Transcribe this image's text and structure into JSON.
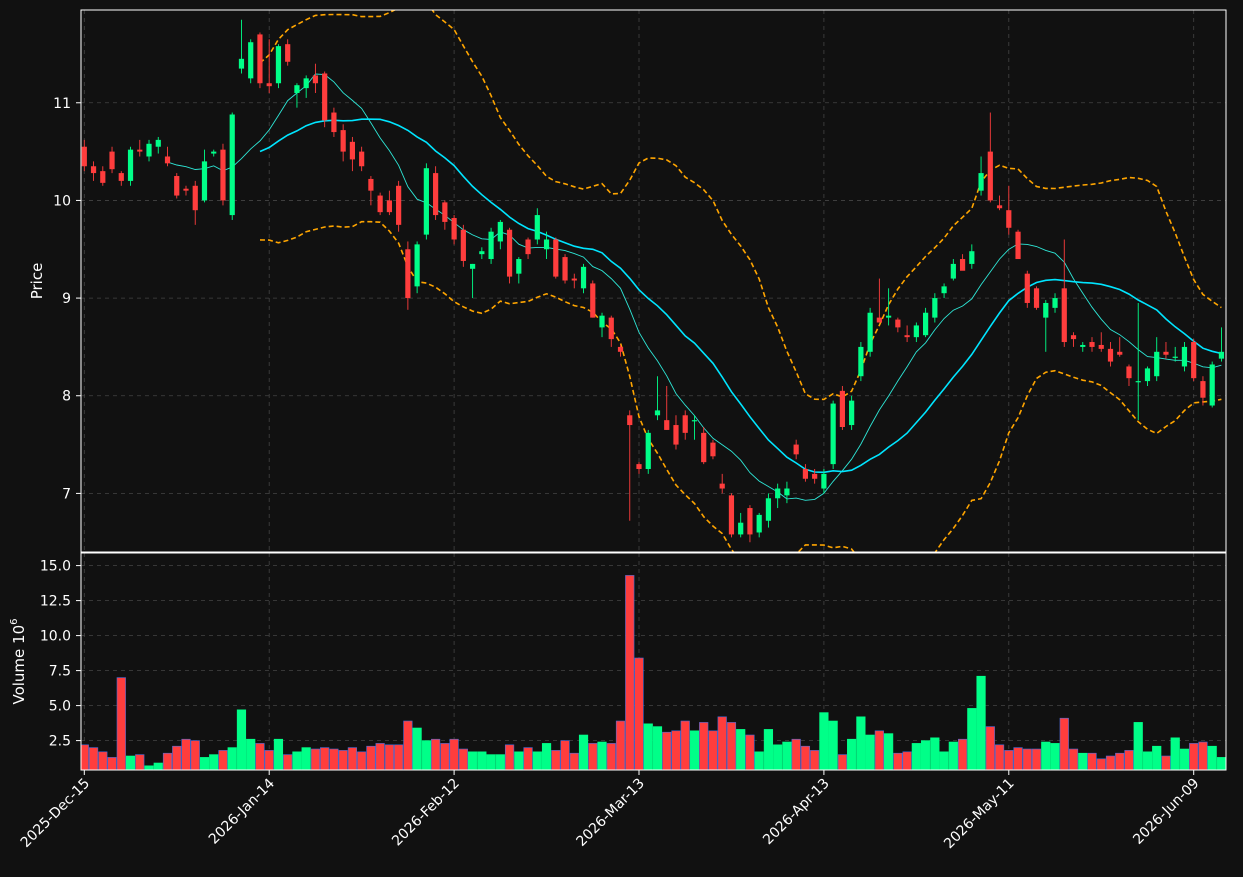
{
  "chart_data": {
    "type": "candlestick",
    "background": "#111111",
    "colors": {
      "up": "#00ff88",
      "down": "#ff3d3d",
      "ma_fast": "#2ee6d6",
      "ma_slow": "#00e5ff",
      "bands": "#ffa500",
      "grid": "#444444",
      "frame": "#ffffff"
    },
    "price_panel": {
      "ylabel": "Price",
      "ylim": [
        6.4,
        11.95
      ],
      "yticks": [
        7,
        8,
        9,
        10,
        11
      ]
    },
    "volume_panel": {
      "ylabel": "Volume",
      "ylabel_exp": "10",
      "ylabel_exp_power": "6",
      "ylim": [
        0.4,
        15.9
      ],
      "yticks": [
        2.5,
        5.0,
        7.5,
        10.0,
        12.5,
        15.0
      ],
      "ytick_labels": [
        "2.5",
        "5.0",
        "7.5",
        "10.0",
        "12.5",
        "15.0"
      ]
    },
    "x_ticks": [
      {
        "index": 0,
        "label": "2025-Dec-15"
      },
      {
        "index": 20,
        "label": "2026-Jan-14"
      },
      {
        "index": 40,
        "label": "2026-Feb-12"
      },
      {
        "index": 60,
        "label": "2026-Mar-13"
      },
      {
        "index": 80,
        "label": "2026-Apr-13"
      },
      {
        "index": 100,
        "label": "2026-May-11"
      },
      {
        "index": 120,
        "label": "2026-Jun-09"
      }
    ],
    "candles": [
      [
        10.55,
        10.62,
        10.3,
        10.35,
        2.2
      ],
      [
        10.35,
        10.4,
        10.2,
        10.28,
        2.0
      ],
      [
        10.3,
        10.35,
        10.15,
        10.18,
        1.7
      ],
      [
        10.5,
        10.55,
        10.28,
        10.32,
        1.3
      ],
      [
        10.28,
        10.3,
        10.15,
        10.2,
        7.0
      ],
      [
        10.2,
        10.55,
        10.15,
        10.52,
        1.4
      ],
      [
        10.52,
        10.62,
        10.45,
        10.5,
        1.5
      ],
      [
        10.45,
        10.62,
        10.4,
        10.58,
        0.7
      ],
      [
        10.55,
        10.65,
        10.48,
        10.62,
        0.9
      ],
      [
        10.45,
        10.55,
        10.35,
        10.38,
        1.6
      ],
      [
        10.25,
        10.28,
        10.02,
        10.05,
        2.1
      ],
      [
        10.12,
        10.15,
        10.05,
        10.1,
        2.6
      ],
      [
        10.15,
        10.2,
        9.75,
        9.9,
        2.5
      ],
      [
        10.0,
        10.52,
        9.98,
        10.4,
        1.3
      ],
      [
        10.48,
        10.52,
        10.45,
        10.5,
        1.5
      ],
      [
        10.52,
        10.58,
        9.95,
        10.0,
        1.8
      ],
      [
        9.85,
        10.9,
        9.8,
        10.88,
        2.0
      ],
      [
        11.35,
        11.85,
        11.3,
        11.45,
        4.7
      ],
      [
        11.25,
        11.65,
        11.2,
        11.62,
        2.6
      ],
      [
        11.7,
        11.72,
        11.15,
        11.2,
        2.3
      ],
      [
        11.2,
        11.65,
        11.1,
        11.17,
        1.8
      ],
      [
        11.2,
        11.6,
        11.15,
        11.58,
        2.6
      ],
      [
        11.6,
        11.65,
        11.38,
        11.42,
        1.5
      ],
      [
        11.1,
        11.2,
        10.95,
        11.18,
        1.7
      ],
      [
        11.15,
        11.28,
        11.05,
        11.25,
        2.0
      ],
      [
        11.28,
        11.4,
        11.1,
        11.2,
        1.9
      ],
      [
        11.3,
        11.32,
        10.75,
        10.82,
        2.0
      ],
      [
        10.9,
        10.95,
        10.65,
        10.7,
        1.9
      ],
      [
        10.72,
        10.78,
        10.4,
        10.5,
        1.8
      ],
      [
        10.6,
        10.65,
        10.3,
        10.42,
        2.0
      ],
      [
        10.5,
        10.55,
        10.3,
        10.35,
        1.7
      ],
      [
        10.22,
        10.25,
        9.95,
        10.1,
        2.1
      ],
      [
        10.05,
        10.08,
        9.85,
        9.88,
        2.3
      ],
      [
        10.0,
        10.1,
        9.85,
        9.88,
        2.2
      ],
      [
        10.15,
        10.2,
        9.68,
        9.75,
        2.2
      ],
      [
        9.5,
        9.58,
        8.88,
        9.0,
        3.9
      ],
      [
        9.12,
        9.58,
        9.05,
        9.55,
        3.4
      ],
      [
        9.65,
        10.38,
        9.6,
        10.33,
        2.5
      ],
      [
        10.28,
        10.35,
        9.8,
        9.85,
        2.6
      ],
      [
        9.98,
        10.0,
        9.7,
        9.78,
        2.3
      ],
      [
        9.82,
        9.85,
        9.55,
        9.6,
        2.6
      ],
      [
        9.7,
        9.75,
        9.32,
        9.38,
        1.9
      ],
      [
        9.3,
        9.35,
        9.0,
        9.35,
        1.7
      ],
      [
        9.45,
        9.52,
        9.4,
        9.48,
        1.7
      ],
      [
        9.4,
        9.72,
        9.35,
        9.68,
        1.5
      ],
      [
        9.58,
        9.8,
        9.5,
        9.78,
        1.5
      ],
      [
        9.7,
        9.72,
        9.15,
        9.22,
        2.2
      ],
      [
        9.25,
        9.42,
        9.15,
        9.4,
        1.7
      ],
      [
        9.6,
        9.62,
        9.4,
        9.45,
        2.0
      ],
      [
        9.6,
        9.92,
        9.55,
        9.85,
        1.7
      ],
      [
        9.5,
        9.68,
        9.4,
        9.6,
        2.3
      ],
      [
        9.6,
        9.62,
        9.2,
        9.22,
        1.8
      ],
      [
        9.42,
        9.45,
        9.15,
        9.18,
        2.5
      ],
      [
        9.2,
        9.25,
        9.1,
        9.18,
        1.6
      ],
      [
        9.1,
        9.35,
        9.05,
        9.32,
        2.9
      ],
      [
        9.15,
        9.18,
        8.8,
        8.8,
        2.3
      ],
      [
        8.7,
        8.85,
        8.6,
        8.82,
        2.4
      ],
      [
        8.8,
        8.82,
        8.5,
        8.58,
        2.3
      ],
      [
        8.5,
        8.52,
        8.4,
        8.45,
        3.9
      ],
      [
        7.8,
        7.85,
        6.72,
        7.7,
        14.3
      ],
      [
        7.3,
        7.32,
        7.2,
        7.25,
        8.4
      ],
      [
        7.25,
        7.65,
        7.2,
        7.62,
        3.7
      ],
      [
        7.8,
        8.2,
        7.75,
        7.85,
        3.5
      ],
      [
        7.75,
        8.1,
        7.65,
        7.65,
        3.1
      ],
      [
        7.7,
        7.8,
        7.45,
        7.5,
        3.2
      ],
      [
        7.8,
        7.85,
        7.55,
        7.62,
        3.9
      ],
      [
        7.75,
        7.8,
        7.55,
        7.75,
        3.2
      ],
      [
        7.62,
        7.68,
        7.3,
        7.32,
        3.8
      ],
      [
        7.52,
        7.55,
        7.35,
        7.38,
        3.2
      ],
      [
        7.1,
        7.2,
        7.0,
        7.05,
        4.2
      ],
      [
        6.98,
        7.0,
        6.55,
        6.58,
        3.8
      ],
      [
        6.58,
        6.8,
        6.55,
        6.7,
        3.3
      ],
      [
        6.85,
        6.88,
        6.5,
        6.58,
        2.9
      ],
      [
        6.6,
        6.8,
        6.55,
        6.78,
        1.7
      ],
      [
        6.72,
        7.0,
        6.65,
        6.95,
        3.3
      ],
      [
        6.95,
        7.1,
        6.85,
        7.05,
        2.2
      ],
      [
        6.98,
        7.12,
        6.9,
        7.05,
        2.4
      ],
      [
        7.5,
        7.55,
        7.35,
        7.4,
        2.6
      ],
      [
        7.25,
        7.3,
        7.12,
        7.15,
        2.1
      ],
      [
        7.2,
        7.25,
        7.1,
        7.15,
        1.8
      ],
      [
        7.05,
        7.25,
        7.0,
        7.2,
        4.5
      ],
      [
        7.3,
        7.95,
        7.25,
        7.92,
        3.9
      ],
      [
        8.05,
        8.1,
        7.65,
        7.68,
        1.5
      ],
      [
        7.7,
        8.0,
        7.65,
        7.95,
        2.6
      ],
      [
        8.2,
        8.55,
        8.15,
        8.5,
        4.2
      ],
      [
        8.45,
        8.9,
        8.4,
        8.85,
        2.9
      ],
      [
        8.8,
        9.2,
        8.75,
        8.75,
        3.2
      ],
      [
        8.8,
        9.1,
        8.72,
        8.82,
        3.0
      ],
      [
        8.78,
        8.8,
        8.65,
        8.7,
        1.6
      ],
      [
        8.62,
        8.72,
        8.55,
        8.6,
        1.7
      ],
      [
        8.6,
        8.75,
        8.55,
        8.72,
        2.3
      ],
      [
        8.62,
        8.9,
        8.6,
        8.85,
        2.5
      ],
      [
        8.8,
        9.05,
        8.75,
        9.0,
        2.7
      ],
      [
        9.05,
        9.15,
        9.0,
        9.12,
        1.7
      ],
      [
        9.2,
        9.4,
        9.18,
        9.35,
        2.4
      ],
      [
        9.4,
        9.45,
        9.3,
        9.28,
        2.6
      ],
      [
        9.35,
        9.55,
        9.3,
        9.48,
        4.8
      ],
      [
        10.1,
        10.45,
        10.05,
        10.28,
        7.1
      ],
      [
        10.5,
        10.9,
        9.98,
        10.0,
        3.5
      ],
      [
        9.95,
        10.05,
        9.9,
        9.92,
        2.2
      ],
      [
        9.9,
        10.15,
        9.65,
        9.72,
        1.8
      ],
      [
        9.68,
        9.7,
        9.4,
        9.4,
        2.0
      ],
      [
        9.25,
        9.28,
        8.9,
        8.95,
        1.9
      ],
      [
        9.1,
        9.12,
        8.88,
        8.9,
        1.9
      ],
      [
        8.8,
        8.98,
        8.45,
        8.95,
        2.4
      ],
      [
        8.9,
        9.05,
        8.85,
        9.0,
        2.3
      ],
      [
        9.1,
        9.6,
        8.5,
        8.55,
        4.1
      ],
      [
        8.62,
        8.65,
        8.5,
        8.58,
        1.9
      ],
      [
        8.5,
        8.55,
        8.45,
        8.52,
        1.6
      ],
      [
        8.55,
        8.6,
        8.45,
        8.5,
        1.6
      ],
      [
        8.52,
        8.65,
        8.45,
        8.48,
        1.2
      ],
      [
        8.48,
        8.55,
        8.3,
        8.35,
        1.4
      ],
      [
        8.45,
        8.6,
        8.4,
        8.42,
        1.6
      ],
      [
        8.3,
        8.32,
        8.1,
        8.18,
        1.8
      ],
      [
        8.15,
        8.95,
        7.75,
        8.15,
        3.8
      ],
      [
        8.15,
        8.3,
        8.1,
        8.28,
        1.7
      ],
      [
        8.2,
        8.6,
        8.15,
        8.45,
        2.1
      ],
      [
        8.45,
        8.55,
        8.38,
        8.42,
        1.4
      ],
      [
        8.4,
        8.5,
        8.35,
        8.4,
        2.7
      ],
      [
        8.3,
        8.55,
        8.25,
        8.5,
        1.9
      ],
      [
        8.55,
        8.58,
        8.15,
        8.18,
        2.3
      ],
      [
        8.15,
        8.2,
        7.9,
        7.98,
        2.4
      ],
      [
        7.9,
        8.35,
        7.88,
        8.32,
        2.1
      ],
      [
        8.38,
        8.7,
        8.35,
        8.45,
        1.3
      ]
    ]
  }
}
